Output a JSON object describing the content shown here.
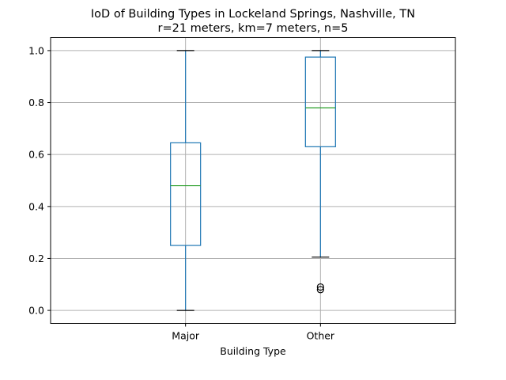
{
  "chart_data": {
    "type": "box",
    "title": "IoD of Building Types in Lockeland Springs, Nashville, TN",
    "subtitle": "r=21 meters, km=7 meters, n=5",
    "xlabel": "Building Type",
    "ylabel": "",
    "ylim": [
      -0.05,
      1.05
    ],
    "yticks": [
      0.0,
      0.2,
      0.4,
      0.6,
      0.8,
      1.0
    ],
    "ytick_labels": [
      "0.0",
      "0.2",
      "0.4",
      "0.6",
      "0.8",
      "1.0"
    ],
    "grid": true,
    "categories": [
      "Major",
      "Other"
    ],
    "boxes": [
      {
        "category": "Major",
        "whisker_low": 0.0,
        "q1": 0.25,
        "median": 0.48,
        "q3": 0.645,
        "whisker_high": 1.0,
        "outliers": []
      },
      {
        "category": "Other",
        "whisker_low": 0.205,
        "q1": 0.63,
        "median": 0.78,
        "q3": 0.975,
        "whisker_high": 1.0,
        "outliers": [
          0.09,
          0.08
        ]
      }
    ],
    "colors": {
      "box": "#1f77b4",
      "median": "#2ca02c",
      "grid": "#b0b0b0",
      "outlier": "#000000"
    }
  }
}
